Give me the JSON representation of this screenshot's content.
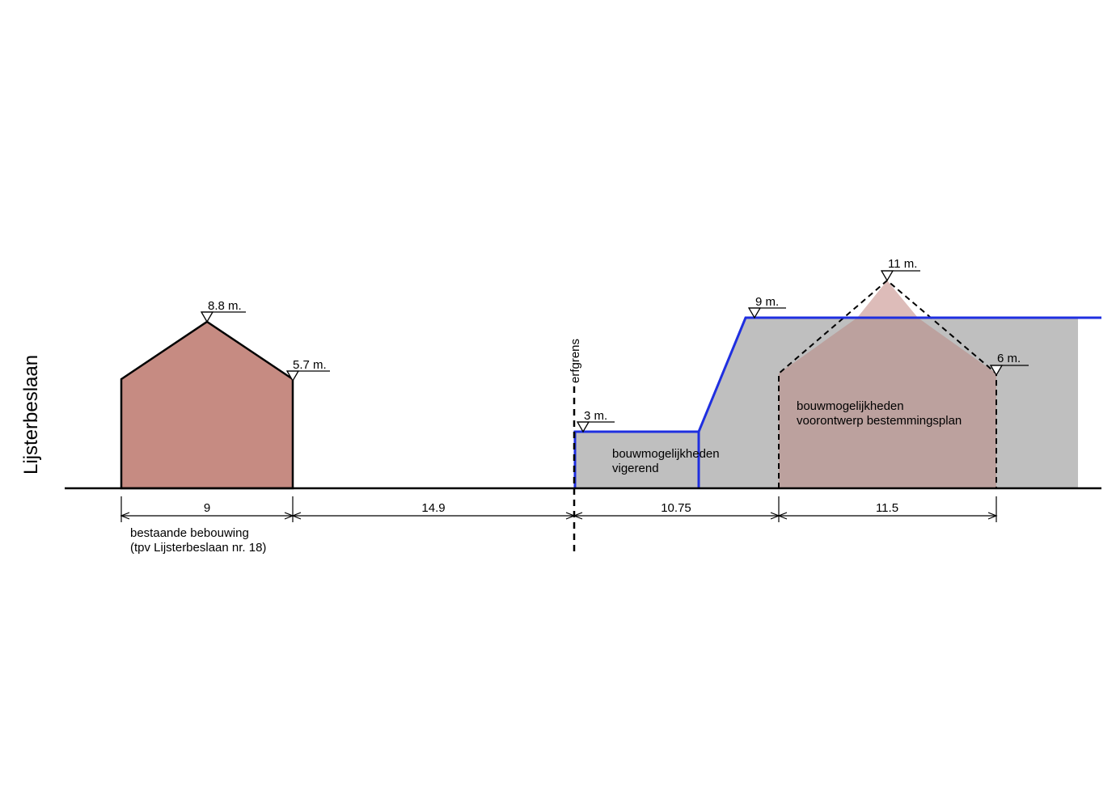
{
  "street_label": "Lijsterbeslaan",
  "boundary_label": "erfgrens",
  "existing": {
    "ridge_height": "8.8 m.",
    "eave_height": "5.7 m.",
    "width": "9",
    "caption_line1": "bestaande bebouwing",
    "caption_line2": "(tpv Lijsterbeslaan nr. 18)"
  },
  "gap_width": "14.9",
  "current_plan": {
    "low_height": "3 m.",
    "high_height": "9 m.",
    "caption_line1": "bouwmogelijkheden",
    "caption_line2": "vigerend",
    "width": "10.75"
  },
  "draft_plan": {
    "ridge_height": "11 m.",
    "eave_height": "6 m.",
    "caption_line1": "bouwmogelijkheden",
    "caption_line2": "voorontwerp bestemmingsplan",
    "width": "11.5"
  },
  "colors": {
    "existing_fill": "#c68b82",
    "current_fill": "#bfbfbf",
    "draft_overlap_fill": "#bca19e",
    "draft_roof_fill": "#ddbcb9",
    "outline_blue": "#1f2fe0",
    "line": "#000000"
  }
}
